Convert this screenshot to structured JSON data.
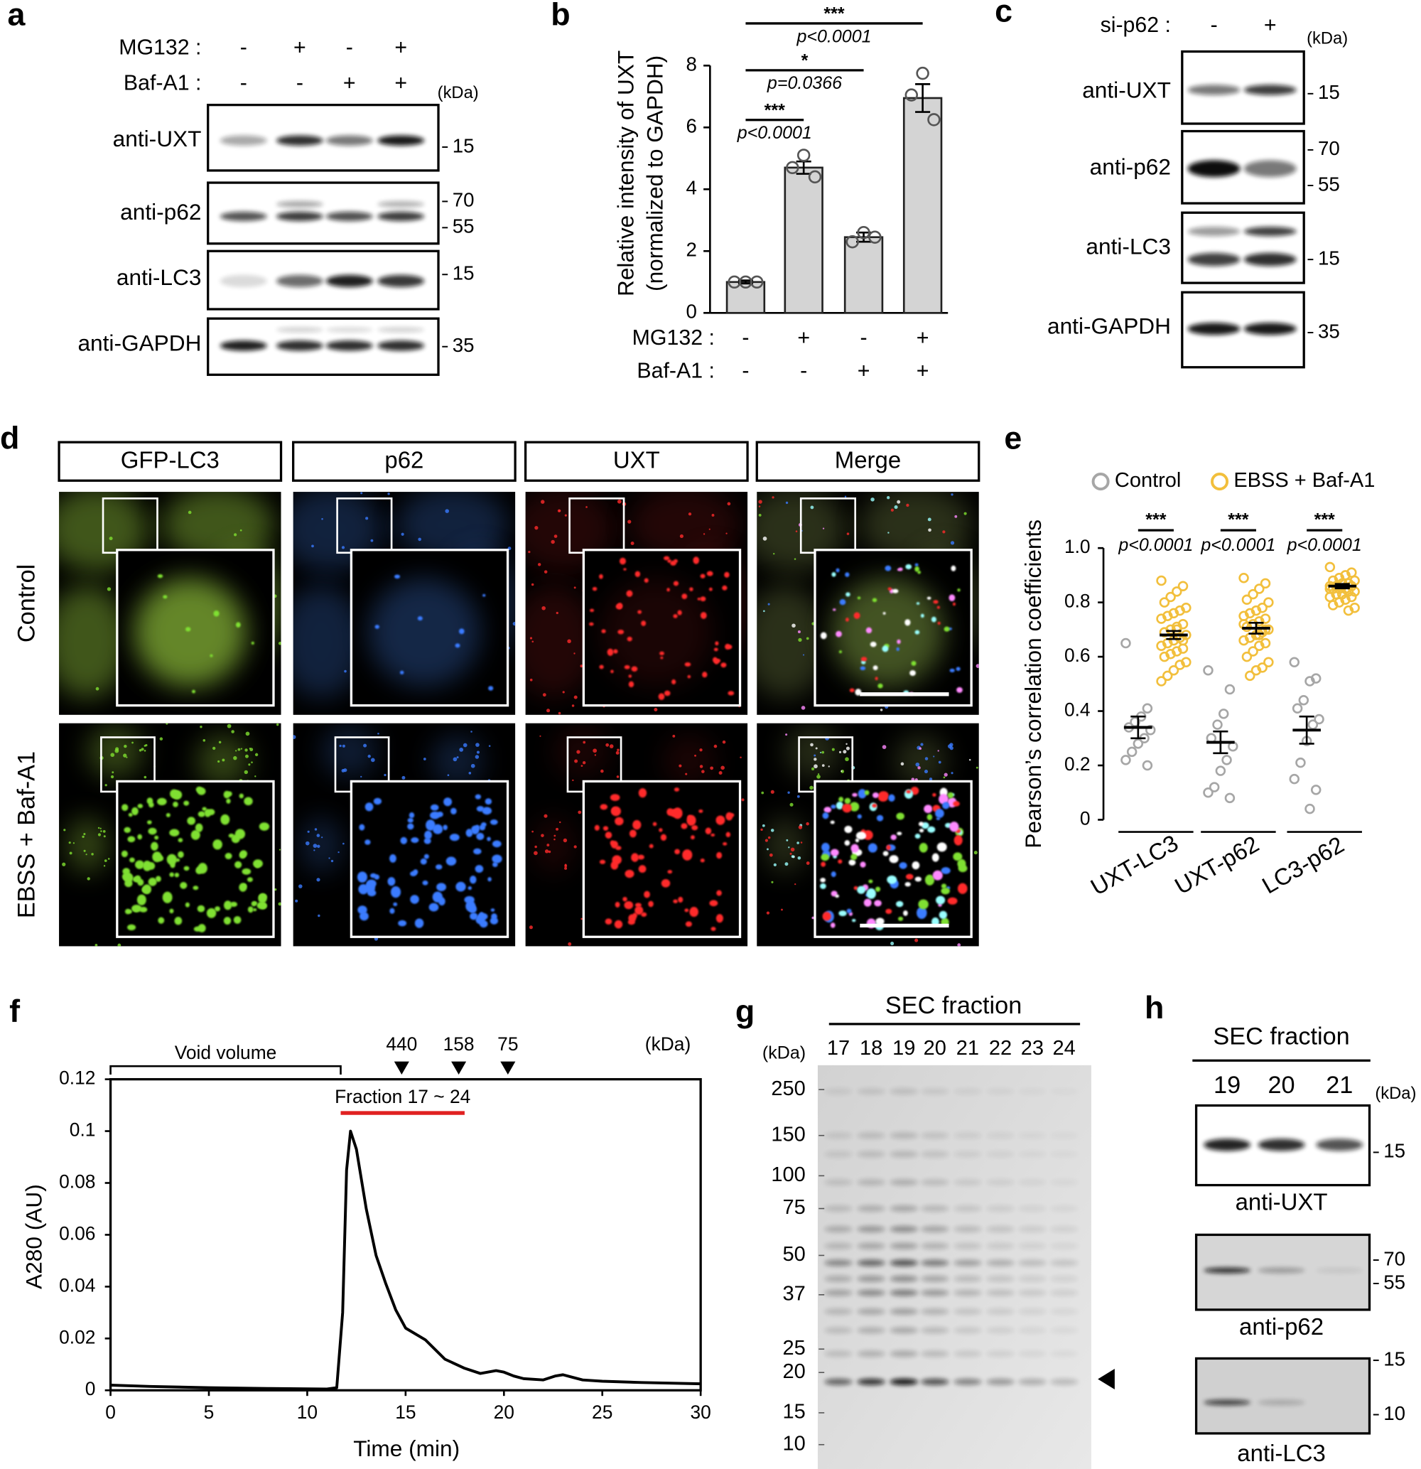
{
  "panel_a": {
    "label": "a",
    "conditions": [
      {
        "name": "MG132 :",
        "values": [
          "-",
          "+",
          "-",
          "+"
        ]
      },
      {
        "name": "Baf-A1 :",
        "values": [
          "-",
          "-",
          "+",
          "+"
        ]
      }
    ],
    "unit": "(kDa)",
    "blots": [
      {
        "name": "anti-UXT",
        "markers": [
          15
        ]
      },
      {
        "name": "anti-p62",
        "markers": [
          70,
          55
        ]
      },
      {
        "name": "anti-LC3",
        "markers": [
          15
        ]
      },
      {
        "name": "anti-GAPDH",
        "markers": [
          35
        ]
      }
    ]
  },
  "chart_data": [
    {
      "type": "bar",
      "label": "b",
      "y_label": [
        "Relative intensity of UXT",
        "(normalized to GAPDH)"
      ],
      "conditions": [
        {
          "name": "MG132 :",
          "values": [
            "-",
            "+",
            "-",
            "+"
          ]
        },
        {
          "name": "Baf-A1 :",
          "values": [
            "-",
            "-",
            "+",
            "+"
          ]
        }
      ],
      "values": [
        1,
        4.7,
        2.45,
        6.95
      ],
      "errors": [
        0.05,
        0.2,
        0.15,
        0.45
      ],
      "points": [
        [
          1,
          1,
          1
        ],
        [
          5.1,
          4.7,
          4.4
        ],
        [
          2.6,
          2.3,
          2.45
        ],
        [
          7.75,
          7.05,
          6.25
        ]
      ],
      "color": "#d4d4d4",
      "ylim": [
        0,
        8
      ],
      "yticks": [
        0,
        2,
        4,
        6,
        8
      ],
      "comparisons": [
        {
          "stars": "***",
          "p": "p<0.0001"
        },
        {
          "stars": "*",
          "p": "p=0.0366"
        },
        {
          "stars": "***",
          "p": "p<0.0001"
        }
      ]
    },
    {
      "type": "dot",
      "label": "e",
      "y_label": "Pearson’s correlation coefficients",
      "categories": [
        "UXT-LC3",
        "UXT-p62",
        "LC3-p62"
      ],
      "series": [
        {
          "name": "Control",
          "color": "#a6a6a6",
          "means": [
            0.34,
            0.285,
            0.33
          ],
          "errors": [
            0.04,
            0.04,
            0.05
          ],
          "points": [
            [
              0.65,
              0.41,
              0.38,
              0.36,
              0.34,
              0.33,
              0.3,
              0.28,
              0.25,
              0.22,
              0.2
            ],
            [
              0.55,
              0.48,
              0.39,
              0.35,
              0.3,
              0.27,
              0.22,
              0.18,
              0.12,
              0.1,
              0.08
            ],
            [
              0.58,
              0.52,
              0.51,
              0.44,
              0.41,
              0.37,
              0.35,
              0.29,
              0.21,
              0.15,
              0.11,
              0.04
            ]
          ]
        },
        {
          "name": "EBSS + Baf-A1",
          "color": "#f2bf3c",
          "means": [
            0.68,
            0.705,
            0.86
          ],
          "errors": [
            0.015,
            0.02,
            0.008
          ],
          "points": [
            [
              0.88,
              0.86,
              0.84,
              0.82,
              0.8,
              0.78,
              0.77,
              0.76,
              0.75,
              0.74,
              0.72,
              0.71,
              0.7,
              0.69,
              0.68,
              0.67,
              0.66,
              0.65,
              0.64,
              0.63,
              0.62,
              0.61,
              0.6,
              0.58,
              0.57,
              0.55,
              0.53,
              0.51,
              0.66,
              0.7
            ],
            [
              0.89,
              0.87,
              0.85,
              0.83,
              0.81,
              0.8,
              0.78,
              0.77,
              0.76,
              0.75,
              0.74,
              0.73,
              0.72,
              0.71,
              0.7,
              0.69,
              0.68,
              0.67,
              0.66,
              0.65,
              0.64,
              0.62,
              0.6,
              0.58,
              0.56,
              0.55,
              0.53,
              0.72,
              0.7,
              0.68
            ],
            [
              0.93,
              0.91,
              0.9,
              0.89,
              0.88,
              0.88,
              0.87,
              0.87,
              0.86,
              0.86,
              0.86,
              0.85,
              0.85,
              0.85,
              0.84,
              0.84,
              0.83,
              0.83,
              0.82,
              0.82,
              0.81,
              0.8,
              0.79,
              0.78,
              0.77,
              0.87,
              0.86,
              0.85
            ]
          ]
        }
      ],
      "ylim": [
        0,
        1
      ],
      "yticks": [
        0,
        0.2,
        0.4,
        0.6,
        0.8,
        {
          "value": 1,
          "label": "1.0"
        }
      ],
      "comparisons": [
        {
          "stars": "***",
          "p": "p<0.0001"
        },
        {
          "stars": "***",
          "p": "p<0.0001"
        },
        {
          "stars": "***",
          "p": "p<0.0001"
        }
      ]
    },
    {
      "type": "line",
      "label": "f",
      "x_label": "Time (min)",
      "y_label": "A280 (AU)",
      "x": [
        0,
        2,
        5,
        8,
        11,
        11.5,
        11.8,
        12,
        12.2,
        12.5,
        13,
        13.5,
        14,
        14.5,
        15,
        16,
        17,
        18,
        18.8,
        19.3,
        19.6,
        20,
        20.5,
        21,
        22,
        22.6,
        23,
        23.5,
        24,
        25,
        27,
        30
      ],
      "values": [
        0.002,
        0.0015,
        0.001,
        0.0007,
        0.0005,
        0.001,
        0.03,
        0.085,
        0.1,
        0.093,
        0.07,
        0.052,
        0.041,
        0.031,
        0.024,
        0.0195,
        0.012,
        0.0085,
        0.0065,
        0.0072,
        0.0076,
        0.007,
        0.0055,
        0.0045,
        0.004,
        0.0055,
        0.006,
        0.005,
        0.004,
        0.0035,
        0.003,
        0.0025
      ],
      "color": "#000000",
      "xlim": [
        0,
        30
      ],
      "xticks": [
        0,
        5,
        10,
        15,
        20,
        25,
        30
      ],
      "ylim": [
        0,
        0.12
      ],
      "yticks": [
        0,
        0.02,
        0.04,
        0.06,
        0.08,
        0.1,
        0.12
      ],
      "void_volume": {
        "label": "Void volume",
        "range": [
          0,
          11.7
        ]
      },
      "fraction": {
        "label": "Fraction 17 ~ 24",
        "range": [
          11.7,
          18
        ],
        "color": "#e02020"
      },
      "markers": [
        {
          "label": "440",
          "x": 14.8
        },
        {
          "label": "158",
          "x": 17.7
        },
        {
          "label": "75",
          "x": 20.2
        }
      ],
      "unit": "(kDa)"
    }
  ],
  "panel_c": {
    "label": "c",
    "conditions": [
      {
        "name": "si-p62 :",
        "values": [
          "-",
          "+"
        ]
      }
    ],
    "unit": "(kDa)",
    "blots": [
      {
        "name": "anti-UXT",
        "markers": [
          15
        ]
      },
      {
        "name": "anti-p62",
        "markers": [
          70,
          55
        ]
      },
      {
        "name": "anti-LC3",
        "markers": [
          15
        ]
      },
      {
        "name": "anti-GAPDH",
        "markers": [
          35
        ]
      }
    ]
  },
  "panel_d": {
    "label": "d",
    "columns": [
      "GFP-LC3",
      "p62",
      "UXT",
      "Merge"
    ],
    "header_colors": [
      "#2bb34a",
      "#1f4fe0",
      "#e41e1e",
      "#000000"
    ],
    "rows": [
      "Control",
      "EBSS + Baf-A1"
    ]
  },
  "panel_g": {
    "label": "g",
    "title": "SEC fraction",
    "lanes": [
      17,
      18,
      19,
      20,
      21,
      22,
      23,
      24
    ],
    "unit": "(kDa)",
    "ladder": [
      250,
      150,
      100,
      75,
      50,
      37,
      25,
      20,
      15,
      10
    ]
  },
  "panel_h": {
    "label": "h",
    "title": "SEC fraction",
    "lanes": [
      19,
      20,
      21
    ],
    "unit": "(kDa)",
    "blots": [
      {
        "name": "anti-UXT",
        "markers": [
          15
        ]
      },
      {
        "name": "anti-p62",
        "markers": [
          70,
          55
        ]
      },
      {
        "name": "anti-LC3",
        "markers": [
          15,
          10
        ]
      }
    ]
  }
}
